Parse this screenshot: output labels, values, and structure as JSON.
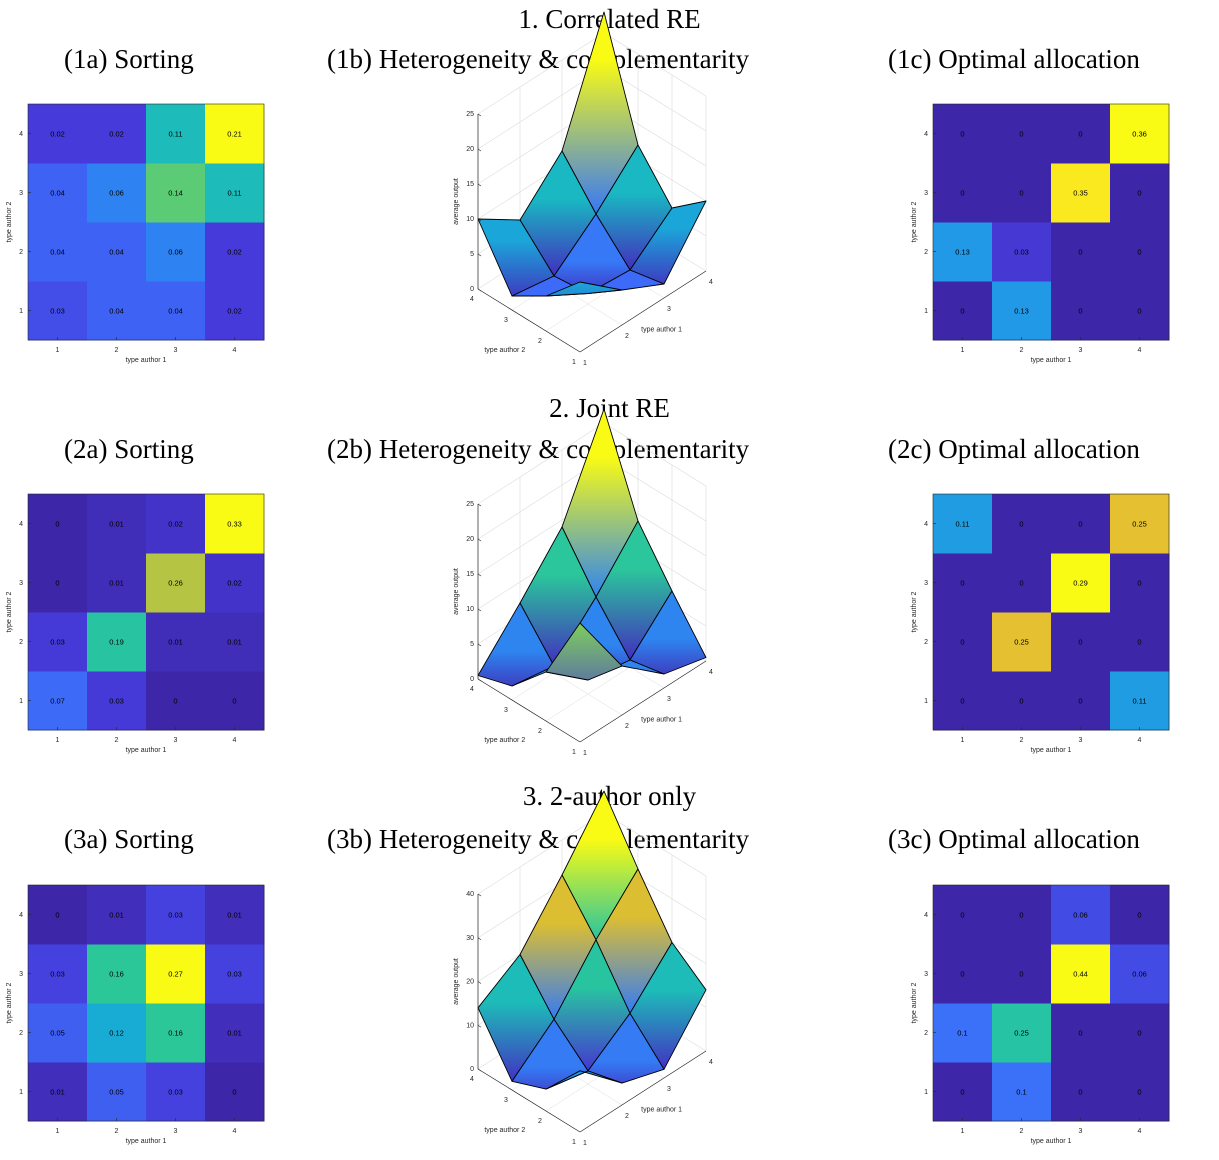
{
  "rows": [
    {
      "title": "1. Correlated RE",
      "panel_titles": [
        "(1a) Sorting",
        "(1b) Heterogeneity & complementarity",
        "(1c) Optimal allocation"
      ]
    },
    {
      "title": "2. Joint RE",
      "panel_titles": [
        "(2a) Sorting",
        "(2b) Heterogeneity & complementarity",
        "(2c) Optimal allocation"
      ]
    },
    {
      "title": "3. 2-author only",
      "panel_titles": [
        "(3a) Sorting",
        "(3b) Heterogeneity & complementarity",
        "(3c) Optimal allocation"
      ]
    }
  ],
  "chart_data": [
    {
      "type": "heatmap",
      "title": "(1a) Sorting",
      "xlabel": "type author 1",
      "ylabel": "type author 2",
      "x": [
        1,
        2,
        3,
        4
      ],
      "y": [
        1,
        2,
        3,
        4
      ],
      "values": [
        [
          0.03,
          0.04,
          0.04,
          0.02
        ],
        [
          0.04,
          0.04,
          0.06,
          0.02
        ],
        [
          0.04,
          0.06,
          0.14,
          0.11
        ],
        [
          0.02,
          0.02,
          0.11,
          0.21
        ]
      ]
    },
    {
      "type": "surface",
      "title": "(1b) Heterogeneity & complementarity",
      "xlabel": "type author 1",
      "ylabel": "type author 2",
      "zlabel": "average output",
      "zticks": [
        0,
        5,
        10,
        15,
        20,
        25
      ],
      "zlim": [
        0,
        25
      ],
      "z": [
        [
          10,
          5,
          2,
          10
        ],
        [
          5,
          1.5,
          1,
          6
        ],
        [
          2,
          1,
          6,
          12
        ],
        [
          10,
          6,
          12,
          28
        ]
      ]
    },
    {
      "type": "heatmap",
      "title": "(1c) Optimal allocation",
      "xlabel": "type author 1",
      "ylabel": "type author 2",
      "x": [
        1,
        2,
        3,
        4
      ],
      "y": [
        1,
        2,
        3,
        4
      ],
      "values": [
        [
          0,
          0.13,
          0,
          0
        ],
        [
          0.13,
          0.03,
          0,
          0
        ],
        [
          0,
          0,
          0.35,
          0
        ],
        [
          0,
          0,
          0,
          0.36
        ]
      ]
    },
    {
      "type": "heatmap",
      "title": "(2a) Sorting",
      "xlabel": "type author 1",
      "ylabel": "type author 2",
      "x": [
        1,
        2,
        3,
        4
      ],
      "y": [
        1,
        2,
        3,
        4
      ],
      "values": [
        [
          0.07,
          0.03,
          0,
          0
        ],
        [
          0.03,
          0.19,
          0.01,
          0.01
        ],
        [
          0,
          0.01,
          0.26,
          0.02
        ],
        [
          0,
          0.01,
          0.02,
          0.33
        ]
      ]
    },
    {
      "type": "surface",
      "title": "(2b) Heterogeneity & complementarity",
      "xlabel": "type author 1",
      "ylabel": "type author 2",
      "zlabel": "average output",
      "zticks": [
        0,
        5,
        10,
        15,
        20,
        25
      ],
      "zlim": [
        0,
        25
      ],
      "z": [
        [
          17,
          7,
          2,
          0.5
        ],
        [
          7,
          2,
          1,
          7
        ],
        [
          2,
          1,
          7,
          14
        ],
        [
          0.5,
          7,
          14,
          27
        ]
      ]
    },
    {
      "type": "heatmap",
      "title": "(2c) Optimal allocation",
      "xlabel": "type author 1",
      "ylabel": "type author 2",
      "x": [
        1,
        2,
        3,
        4
      ],
      "y": [
        1,
        2,
        3,
        4
      ],
      "values": [
        [
          0,
          0,
          0,
          0.11
        ],
        [
          0,
          0.25,
          0,
          0
        ],
        [
          0,
          0,
          0.29,
          0
        ],
        [
          0.11,
          0,
          0,
          0.25
        ]
      ]
    },
    {
      "type": "heatmap",
      "title": "(3a) Sorting",
      "xlabel": "type author 1",
      "ylabel": "type author 2",
      "x": [
        1,
        2,
        3,
        4
      ],
      "y": [
        1,
        2,
        3,
        4
      ],
      "values": [
        [
          0.01,
          0.05,
          0.03,
          0
        ],
        [
          0.05,
          0.12,
          0.16,
          0.01
        ],
        [
          0.03,
          0.16,
          0.27,
          0.03
        ],
        [
          0,
          0.01,
          0.03,
          0.01
        ]
      ]
    },
    {
      "type": "surface",
      "title": "(3b) Heterogeneity & complementarity",
      "xlabel": "type author 1",
      "ylabel": "type author 2",
      "zlabel": "average output",
      "zticks": [
        0,
        10,
        20,
        30,
        40
      ],
      "zlim": [
        0,
        40
      ],
      "z": [
        [
          14,
          5,
          2,
          14
        ],
        [
          5,
          3,
          10,
          20
        ],
        [
          2,
          10,
          22,
          32
        ],
        [
          14,
          20,
          32,
          45
        ]
      ]
    },
    {
      "type": "heatmap",
      "title": "(3c) Optimal allocation",
      "xlabel": "type author 1",
      "ylabel": "type author 2",
      "x": [
        1,
        2,
        3,
        4
      ],
      "y": [
        1,
        2,
        3,
        4
      ],
      "values": [
        [
          0,
          0.1,
          0,
          0
        ],
        [
          0.1,
          0.25,
          0,
          0
        ],
        [
          0,
          0,
          0.44,
          0.06
        ],
        [
          0,
          0,
          0.06,
          0
        ]
      ]
    }
  ]
}
